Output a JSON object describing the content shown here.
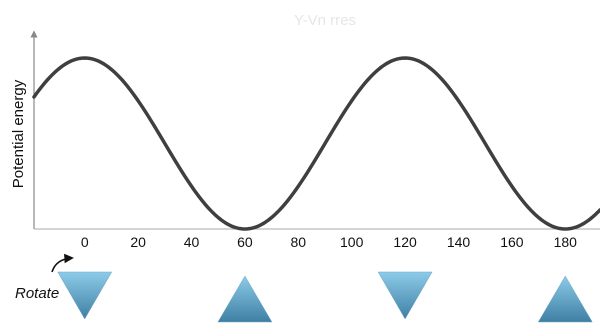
{
  "figure": {
    "faint_title": "Y-Vn rres",
    "ylabel": "Potential energy",
    "rotate_label": "Rotate"
  },
  "chart_data": {
    "type": "line",
    "title": "",
    "xlabel": "",
    "ylabel": "Potential energy",
    "x_ticks": [
      0,
      20,
      40,
      60,
      80,
      100,
      120,
      140,
      160,
      180
    ],
    "xlim": [
      -19,
      193
    ],
    "ylim": [
      0,
      1
    ],
    "grid": false,
    "legend": "none",
    "curve_color": "#3f3f3f",
    "series": [
      {
        "function": "cosine",
        "period_deg": 120,
        "maxima_at_deg": [
          0,
          120
        ],
        "minima_at_deg": [
          60,
          180
        ],
        "min_value": 0,
        "max_value": 1
      }
    ]
  },
  "conformers": [
    {
      "angle": 0,
      "orientation": "down"
    },
    {
      "angle": 60,
      "orientation": "up"
    },
    {
      "angle": 120,
      "orientation": "down"
    },
    {
      "angle": 180,
      "orientation": "up"
    }
  ],
  "colors": {
    "triangle_top": "#8ccbe8",
    "triangle_bottom": "#3f7fa3",
    "axis": "#888888",
    "text": "#111111"
  }
}
